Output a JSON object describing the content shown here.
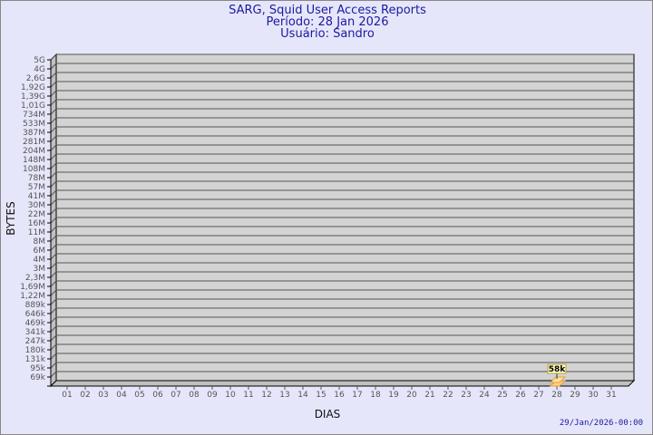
{
  "header": {
    "title": "SARG, Squid User Access Reports",
    "period": "Período: 28 Jan 2026",
    "user": "Usuário: Sandro"
  },
  "footer": {
    "timestamp": "29/Jan/2026-00:00"
  },
  "chart_data": {
    "type": "bar",
    "title": "SARG, Squid User Access Reports",
    "xlabel": "DIAS",
    "ylabel": "BYTES",
    "yscale": "log",
    "grid": true,
    "y_tick_labels": [
      "5G",
      "4G",
      "2,6G",
      "1,92G",
      "1,39G",
      "1,01G",
      "734M",
      "533M",
      "387M",
      "281M",
      "204M",
      "148M",
      "108M",
      "78M",
      "57M",
      "41M",
      "30M",
      "22M",
      "16M",
      "11M",
      "8M",
      "6M",
      "4M",
      "3M",
      "2,3M",
      "1,69M",
      "1,22M",
      "889k",
      "646k",
      "469k",
      "341k",
      "247k",
      "180k",
      "131k",
      "95k",
      "69k"
    ],
    "categories": [
      "01",
      "02",
      "03",
      "04",
      "05",
      "06",
      "07",
      "08",
      "09",
      "10",
      "11",
      "12",
      "13",
      "14",
      "15",
      "16",
      "17",
      "18",
      "19",
      "20",
      "21",
      "22",
      "23",
      "24",
      "25",
      "26",
      "27",
      "28",
      "29",
      "30",
      "31"
    ],
    "values": [
      0,
      0,
      0,
      0,
      0,
      0,
      0,
      0,
      0,
      0,
      0,
      0,
      0,
      0,
      0,
      0,
      0,
      0,
      0,
      0,
      0,
      0,
      0,
      0,
      0,
      0,
      0,
      58000,
      0,
      0,
      0
    ],
    "data_labels": {
      "28": "58k"
    },
    "colors": {
      "bar": "#ffd080",
      "wall": "#d3d3d3",
      "label_bg": "#ffffc0"
    }
  }
}
